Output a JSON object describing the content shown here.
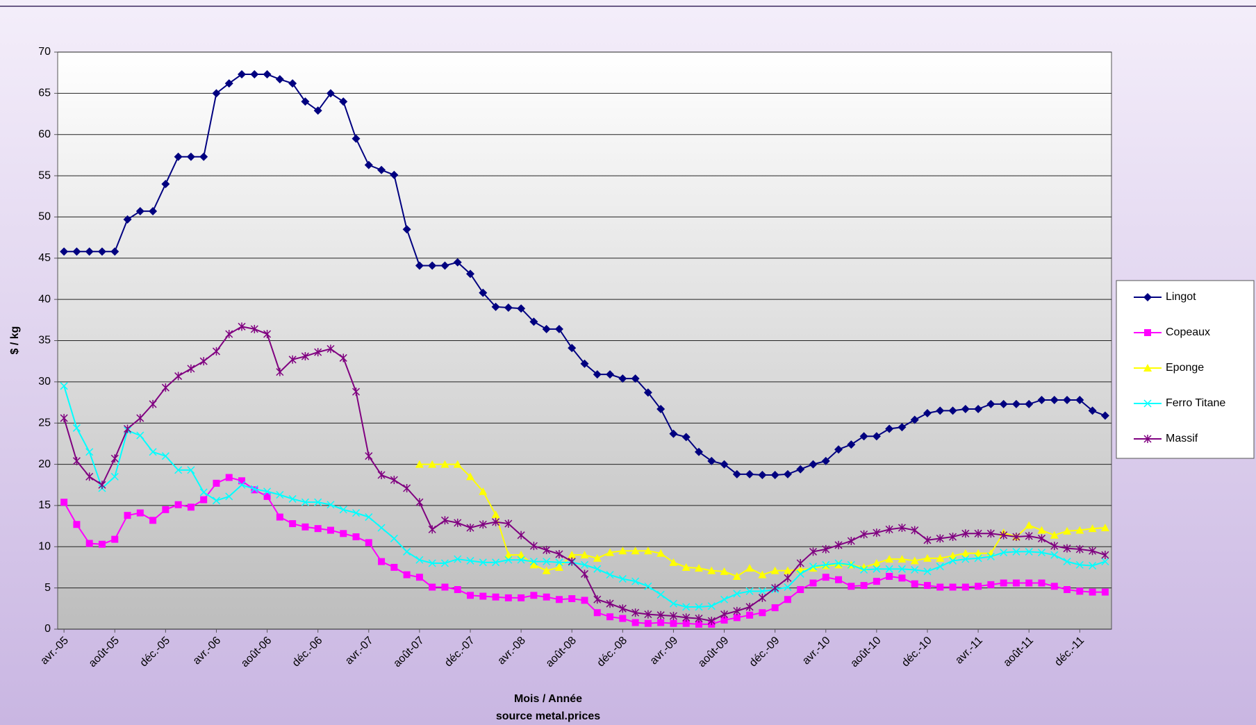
{
  "chart_data": {
    "type": "line",
    "ylabel": "$ / kg",
    "xlabel": "Mois / Année",
    "source": "source metal.prices",
    "categories": [
      "avr.-05",
      null,
      null,
      null,
      "août-05",
      null,
      null,
      null,
      "déc.-05",
      null,
      null,
      null,
      "avr.-06",
      null,
      null,
      null,
      "août-06",
      null,
      null,
      null,
      "déc.-06",
      null,
      null,
      null,
      "avr.-07",
      null,
      null,
      null,
      "août-07",
      null,
      null,
      null,
      "déc.-07",
      null,
      null,
      null,
      "avr.-08",
      null,
      null,
      null,
      "août-08",
      null,
      null,
      null,
      "déc.-08",
      null,
      null,
      null,
      "avr.-09",
      null,
      null,
      null,
      "août-09",
      null,
      null,
      null,
      "déc.-09",
      null,
      null,
      null,
      "avr.-10",
      null,
      null,
      null,
      "août-10",
      null,
      null,
      null,
      "déc.-10",
      null,
      null,
      null,
      "avr.-11",
      null,
      null,
      null,
      "août-11",
      null,
      null,
      null,
      "déc.-11",
      null,
      null
    ],
    "ylim": [
      0,
      70
    ],
    "yticks": [
      0,
      5,
      10,
      15,
      20,
      25,
      30,
      35,
      40,
      45,
      50,
      55,
      60,
      65,
      70
    ],
    "grid": true,
    "legend": "right",
    "series": [
      {
        "name": "Lingot",
        "color": "#000080",
        "marker": "diamond",
        "values": [
          45.8,
          45.8,
          45.8,
          45.8,
          45.8,
          49.7,
          50.7,
          50.7,
          54,
          57.3,
          57.3,
          57.3,
          65,
          66.2,
          67.3,
          67.3,
          67.3,
          66.7,
          66.2,
          64,
          62.9,
          65,
          64,
          59.5,
          56.3,
          55.7,
          55.1,
          48.5,
          44.1,
          44.1,
          44.1,
          44.5,
          43.1,
          40.8,
          39.1,
          39,
          38.9,
          37.3,
          36.4,
          36.4,
          34.1,
          32.2,
          30.9,
          30.9,
          30.4,
          30.4,
          28.7,
          26.7,
          23.7,
          23.3,
          21.5,
          20.4,
          20,
          18.8,
          18.8,
          18.7,
          18.7,
          18.8,
          19.4,
          20,
          20.4,
          21.8,
          22.4,
          23.4,
          23.4,
          24.3,
          24.5,
          25.4,
          26.2,
          26.5,
          26.5,
          26.7,
          26.7,
          27.3,
          27.3,
          27.3,
          27.3,
          27.8,
          27.8,
          27.8,
          27.8,
          26.5,
          25.9
        ]
      },
      {
        "name": "Copeaux",
        "color": "#ff00ff",
        "marker": "square",
        "values": [
          15.4,
          12.7,
          10.4,
          10.3,
          10.9,
          13.8,
          14.1,
          13.2,
          14.5,
          15.1,
          14.8,
          15.7,
          17.7,
          18.4,
          18,
          16.9,
          16.1,
          13.6,
          12.8,
          12.4,
          12.2,
          12,
          11.6,
          11.2,
          10.5,
          8.2,
          7.5,
          6.6,
          6.3,
          5.1,
          5.1,
          4.8,
          4.1,
          4,
          3.9,
          3.8,
          3.8,
          4.1,
          3.9,
          3.6,
          3.7,
          3.5,
          2,
          1.5,
          1.3,
          0.8,
          0.7,
          0.8,
          0.7,
          0.7,
          0.6,
          0.6,
          1.1,
          1.4,
          1.7,
          2,
          2.6,
          3.6,
          4.8,
          5.6,
          6.3,
          6,
          5.2,
          5.3,
          5.8,
          6.4,
          6.2,
          5.5,
          5.3,
          5.1,
          5.1,
          5.1,
          5.2,
          5.4,
          5.6,
          5.6,
          5.6,
          5.6,
          5.2,
          4.8,
          4.6,
          4.5,
          4.5
        ]
      },
      {
        "name": "Eponge",
        "color": "#ffff00",
        "marker": "triangle",
        "values": [
          null,
          null,
          null,
          null,
          null,
          null,
          null,
          null,
          null,
          null,
          null,
          null,
          null,
          null,
          null,
          null,
          null,
          null,
          null,
          null,
          null,
          null,
          null,
          null,
          null,
          null,
          null,
          null,
          20,
          20,
          20,
          20,
          18.5,
          16.7,
          13.9,
          9,
          9,
          7.8,
          7.1,
          7.5,
          9,
          9,
          8.6,
          9.3,
          9.5,
          9.5,
          9.5,
          9.2,
          8.1,
          7.5,
          7.4,
          7.1,
          7,
          6.4,
          7.4,
          6.6,
          7.1,
          7.1,
          7.2,
          7.4,
          7.7,
          7.8,
          7.8,
          7.5,
          8,
          8.5,
          8.5,
          8.3,
          8.6,
          8.6,
          8.9,
          9.2,
          9.2,
          9.2,
          11.7,
          11.2,
          12.6,
          12,
          11.4,
          11.9,
          12,
          12.2,
          12.3
        ]
      },
      {
        "name": "Ferro Titane",
        "color": "#00ffff",
        "marker": "x",
        "values": [
          29.5,
          24.4,
          21.5,
          17.1,
          18.5,
          24.1,
          23.5,
          21.5,
          21,
          19.3,
          19.3,
          16.6,
          15.6,
          16.1,
          17.5,
          17,
          16.7,
          16.3,
          15.8,
          15.4,
          15.4,
          15.1,
          14.5,
          14.1,
          13.6,
          12.3,
          11,
          9.4,
          8.4,
          8,
          8,
          8.5,
          8.3,
          8.1,
          8.1,
          8.4,
          8.4,
          8.2,
          8.2,
          8.1,
          8.1,
          7.8,
          7.3,
          6.6,
          6.1,
          5.8,
          5.2,
          4.2,
          3.1,
          2.7,
          2.7,
          2.8,
          3.6,
          4.3,
          4.6,
          4.6,
          4.8,
          5.1,
          6.7,
          7.6,
          7.8,
          8,
          7.8,
          7.2,
          7.3,
          7.3,
          7.3,
          7.2,
          7,
          7.6,
          8.3,
          8.5,
          8.6,
          8.8,
          9.3,
          9.4,
          9.4,
          9.3,
          9,
          8.2,
          7.8,
          7.7,
          8.2
        ]
      },
      {
        "name": "Massif",
        "color": "#800080",
        "marker": "star",
        "values": [
          25.6,
          20.4,
          18.5,
          17.5,
          20.7,
          24.3,
          25.6,
          27.3,
          29.3,
          30.7,
          31.6,
          32.5,
          33.7,
          35.8,
          36.7,
          36.4,
          35.8,
          31.2,
          32.7,
          33.1,
          33.6,
          34,
          32.9,
          28.8,
          21,
          18.7,
          18.1,
          17.1,
          15.4,
          12.1,
          13.2,
          12.9,
          12.3,
          12.7,
          13,
          12.8,
          11.4,
          10.1,
          9.6,
          9.1,
          8.2,
          6.7,
          3.6,
          3.1,
          2.5,
          2,
          1.8,
          1.7,
          1.6,
          1.4,
          1.3,
          1,
          1.8,
          2.2,
          2.7,
          3.8,
          5,
          6.2,
          8,
          9.4,
          9.7,
          10.2,
          10.7,
          11.5,
          11.7,
          12.1,
          12.3,
          12,
          10.8,
          11,
          11.2,
          11.6,
          11.6,
          11.6,
          11.4,
          11.2,
          11.3,
          11,
          10.1,
          9.8,
          9.7,
          9.5,
          9
        ]
      }
    ]
  }
}
